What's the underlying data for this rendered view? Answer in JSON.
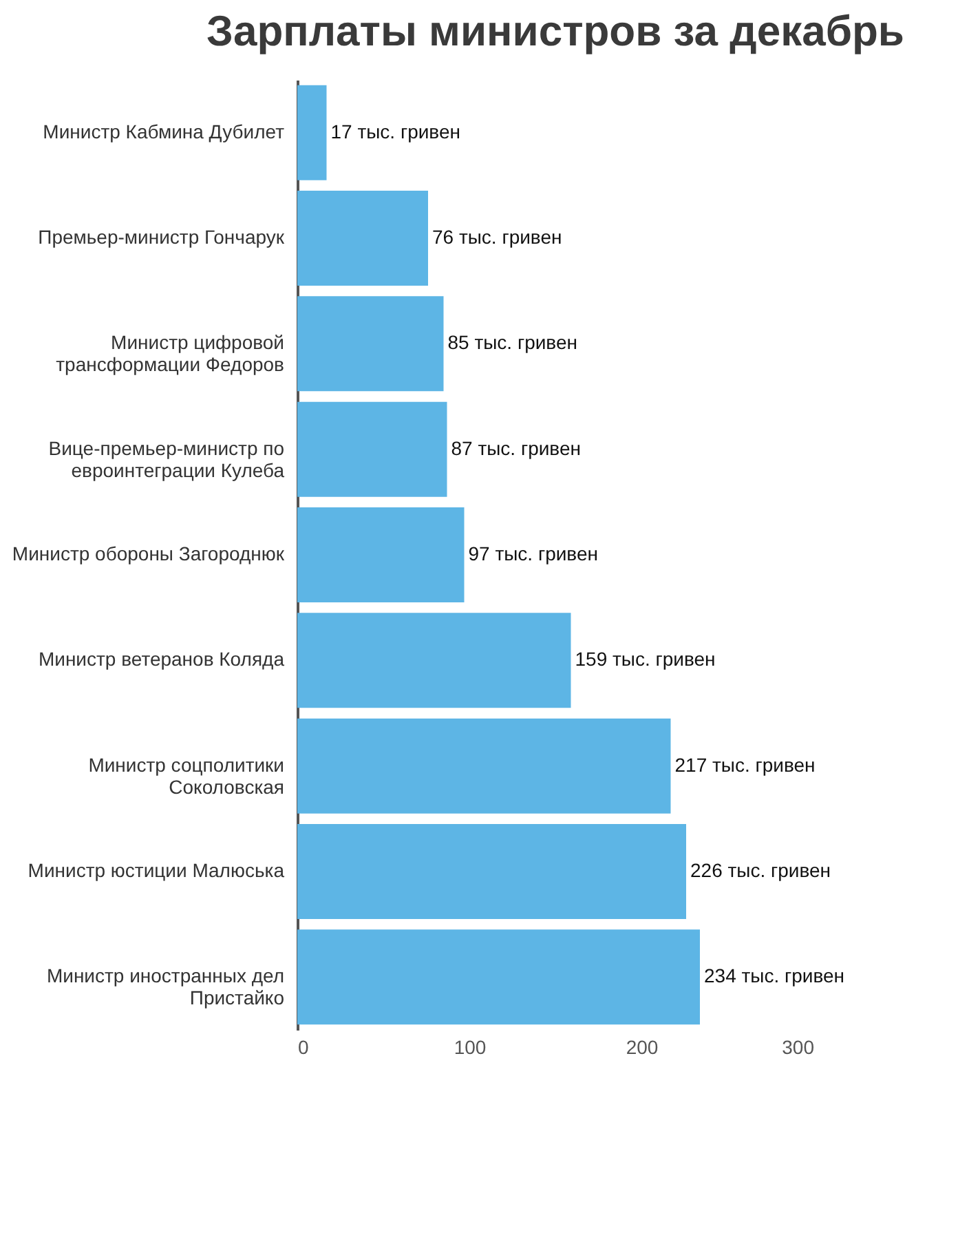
{
  "chart_data": {
    "type": "bar",
    "orientation": "horizontal",
    "title": "Зарплаты министров за декабрь",
    "categories": [
      "Министр Кабмина Дубилет",
      "Премьер-министр Гончарук",
      "Министр цифровой\nтрансформации Федоров",
      "Вице-премьер-министр по\nевроинтеграции Кулеба",
      "Министр обороны Загороднюк",
      "Министр ветеранов Коляда",
      "Министр соцполитики\nСоколовская",
      "Министр юстиции Малюська",
      "Министр иностранных дел\nПристайко"
    ],
    "values": [
      17,
      76,
      85,
      87,
      97,
      159,
      217,
      226,
      234
    ],
    "value_labels": [
      "17 тыс. гривен",
      "76 тыс. гривен",
      "85 тыс. гривен",
      "87 тыс. гривен",
      "97 тыс. гривен",
      "159 тыс. гривен",
      "217 тыс. гривен",
      "226 тыс. гривен",
      "234 тыс. гривен"
    ],
    "color": "#5db5e5",
    "xlim": [
      0,
      300
    ],
    "xticks": [
      0,
      100,
      200,
      300
    ],
    "grid": false
  }
}
